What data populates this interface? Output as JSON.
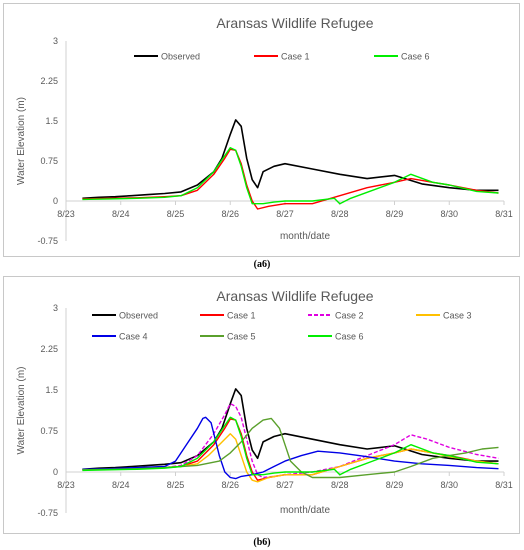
{
  "captions": [
    "(a6)",
    "(b6)"
  ],
  "colors": {
    "Observed": "#000000",
    "Case 1": "#ff0000",
    "Case 2": "#e000e0",
    "Case 3": "#ffc000",
    "Case 4": "#0000e6",
    "Case 5": "#5aa02c",
    "Case 6": "#00ee00"
  },
  "chart_data": [
    {
      "type": "line",
      "title": "Aransas Wildlife Refugee",
      "xlabel": "month/date",
      "ylabel": "Water Elevation (m)",
      "x_ticks": [
        "8/23",
        "8/24",
        "8/25",
        "8/26",
        "8/27",
        "8/28",
        "8/29",
        "8/30",
        "8/31"
      ],
      "y_ticks": [
        "-0.75",
        "0",
        "0.75",
        "1.5",
        "2.25",
        "3"
      ],
      "xlim": [
        0,
        8
      ],
      "ylim": [
        -0.75,
        3
      ],
      "grid": false,
      "legend_position": "top",
      "x_note": "x values in days after 8/23",
      "series": [
        {
          "name": "Observed",
          "x": [
            0.3,
            0.6,
            0.9,
            1.2,
            1.5,
            1.8,
            2.1,
            2.4,
            2.7,
            2.85,
            3.0,
            3.1,
            3.2,
            3.3,
            3.4,
            3.5,
            3.6,
            3.8,
            4.0,
            4.5,
            5.0,
            5.5,
            6.0,
            6.5,
            7.0,
            7.5,
            7.9
          ],
          "y": [
            0.05,
            0.07,
            0.08,
            0.1,
            0.12,
            0.14,
            0.17,
            0.3,
            0.55,
            0.8,
            1.25,
            1.52,
            1.4,
            0.8,
            0.4,
            0.25,
            0.55,
            0.65,
            0.7,
            0.6,
            0.5,
            0.42,
            0.48,
            0.32,
            0.25,
            0.2,
            0.2
          ]
        },
        {
          "name": "Case 1",
          "x": [
            0.3,
            0.8,
            1.3,
            1.8,
            2.1,
            2.4,
            2.7,
            2.9,
            3.0,
            3.1,
            3.2,
            3.3,
            3.4,
            3.5,
            3.7,
            4.0,
            4.5,
            5.0,
            5.5,
            6.0,
            6.3,
            6.7,
            7.0,
            7.5,
            7.9
          ],
          "y": [
            0.04,
            0.05,
            0.06,
            0.08,
            0.1,
            0.2,
            0.5,
            0.8,
            0.97,
            0.95,
            0.7,
            0.3,
            0.0,
            -0.15,
            -0.1,
            -0.05,
            -0.05,
            0.1,
            0.25,
            0.35,
            0.42,
            0.35,
            0.3,
            0.2,
            0.15
          ]
        },
        {
          "name": "Case 6",
          "x": [
            0.3,
            0.8,
            1.3,
            1.8,
            2.1,
            2.4,
            2.7,
            2.9,
            3.0,
            3.1,
            3.2,
            3.3,
            3.4,
            3.6,
            3.8,
            4.0,
            4.5,
            4.9,
            5.0,
            5.2,
            5.6,
            6.0,
            6.3,
            6.7,
            7.0,
            7.5,
            7.9
          ],
          "y": [
            0.03,
            0.04,
            0.05,
            0.07,
            0.1,
            0.25,
            0.55,
            0.85,
            1.0,
            0.95,
            0.65,
            0.25,
            -0.05,
            -0.05,
            -0.02,
            0.0,
            0.0,
            0.05,
            -0.05,
            0.05,
            0.2,
            0.35,
            0.5,
            0.35,
            0.3,
            0.18,
            0.15
          ]
        }
      ]
    },
    {
      "type": "line",
      "title": "Aransas Wildlife Refugee",
      "xlabel": "month/date",
      "ylabel": "Water Elevation (m)",
      "x_ticks": [
        "8/23",
        "8/24",
        "8/25",
        "8/26",
        "8/27",
        "8/28",
        "8/29",
        "8/30",
        "8/31"
      ],
      "y_ticks": [
        "-0.75",
        "0",
        "0.75",
        "1.5",
        "2.25",
        "3"
      ],
      "xlim": [
        0,
        8
      ],
      "ylim": [
        -0.75,
        3
      ],
      "grid": false,
      "legend_position": "top",
      "x_note": "x values in days after 8/23",
      "series": [
        {
          "name": "Observed",
          "x": [
            0.3,
            0.6,
            0.9,
            1.2,
            1.5,
            1.8,
            2.1,
            2.4,
            2.7,
            2.85,
            3.0,
            3.1,
            3.2,
            3.3,
            3.4,
            3.5,
            3.6,
            3.8,
            4.0,
            4.5,
            5.0,
            5.5,
            6.0,
            6.5,
            7.0,
            7.5,
            7.9
          ],
          "y": [
            0.05,
            0.07,
            0.08,
            0.1,
            0.12,
            0.14,
            0.17,
            0.3,
            0.55,
            0.8,
            1.25,
            1.52,
            1.4,
            0.8,
            0.4,
            0.25,
            0.55,
            0.65,
            0.7,
            0.6,
            0.5,
            0.42,
            0.48,
            0.32,
            0.25,
            0.2,
            0.2
          ]
        },
        {
          "name": "Case 1",
          "x": [
            0.3,
            0.8,
            1.3,
            1.8,
            2.1,
            2.4,
            2.7,
            2.9,
            3.0,
            3.1,
            3.2,
            3.3,
            3.4,
            3.5,
            3.7,
            4.0,
            4.5,
            5.0,
            5.5,
            6.0,
            6.3,
            6.7,
            7.0,
            7.5,
            7.9
          ],
          "y": [
            0.04,
            0.05,
            0.06,
            0.08,
            0.1,
            0.2,
            0.5,
            0.8,
            0.97,
            0.95,
            0.7,
            0.3,
            0.0,
            -0.15,
            -0.1,
            -0.05,
            -0.05,
            0.1,
            0.25,
            0.35,
            0.42,
            0.35,
            0.3,
            0.2,
            0.15
          ]
        },
        {
          "name": "Case 2",
          "x": [
            0.3,
            0.8,
            1.3,
            1.8,
            2.1,
            2.4,
            2.7,
            2.9,
            3.0,
            3.1,
            3.2,
            3.3,
            3.4,
            3.5,
            3.6,
            3.8,
            4.0,
            4.5,
            5.0,
            5.5,
            6.0,
            6.3,
            6.6,
            7.0,
            7.5,
            7.9
          ],
          "y": [
            0.04,
            0.05,
            0.06,
            0.08,
            0.12,
            0.3,
            0.7,
            1.05,
            1.25,
            1.2,
            1.0,
            0.6,
            0.2,
            -0.05,
            -0.1,
            -0.08,
            -0.05,
            0.0,
            0.1,
            0.3,
            0.5,
            0.68,
            0.6,
            0.45,
            0.32,
            0.25
          ]
        },
        {
          "name": "Case 3",
          "x": [
            0.3,
            0.8,
            1.3,
            1.8,
            2.1,
            2.4,
            2.6,
            2.8,
            3.0,
            3.1,
            3.2,
            3.3,
            3.4,
            3.5,
            3.7,
            4.0,
            4.5,
            5.0,
            5.5,
            6.0,
            6.3,
            6.7,
            7.0,
            7.5,
            7.9
          ],
          "y": [
            0.04,
            0.05,
            0.06,
            0.08,
            0.1,
            0.15,
            0.3,
            0.5,
            0.7,
            0.6,
            0.3,
            0.0,
            -0.15,
            -0.18,
            -0.1,
            -0.05,
            -0.05,
            0.1,
            0.25,
            0.35,
            0.42,
            0.35,
            0.28,
            0.2,
            0.15
          ]
        },
        {
          "name": "Case 4",
          "x": [
            0.3,
            0.8,
            1.3,
            1.8,
            2.0,
            2.2,
            2.4,
            2.5,
            2.55,
            2.65,
            2.8,
            2.9,
            3.0,
            3.1,
            3.2,
            3.4,
            3.6,
            3.8,
            4.0,
            4.3,
            4.6,
            5.0,
            5.5,
            6.0,
            6.5,
            7.0,
            7.5,
            7.9
          ],
          "y": [
            0.05,
            0.06,
            0.08,
            0.1,
            0.2,
            0.5,
            0.8,
            0.98,
            1.0,
            0.9,
            0.3,
            0.0,
            -0.1,
            -0.12,
            -0.08,
            -0.05,
            0.0,
            0.1,
            0.2,
            0.3,
            0.38,
            0.35,
            0.28,
            0.2,
            0.15,
            0.12,
            0.08,
            0.06
          ]
        },
        {
          "name": "Case 5",
          "x": [
            0.3,
            0.8,
            1.3,
            1.8,
            2.1,
            2.4,
            2.8,
            3.0,
            3.2,
            3.4,
            3.6,
            3.75,
            3.9,
            4.0,
            4.1,
            4.3,
            4.5,
            5.0,
            5.5,
            6.0,
            6.3,
            6.7,
            7.0,
            7.3,
            7.6,
            7.9
          ],
          "y": [
            0.04,
            0.05,
            0.06,
            0.08,
            0.1,
            0.12,
            0.2,
            0.35,
            0.55,
            0.8,
            0.95,
            0.98,
            0.8,
            0.5,
            0.2,
            0.0,
            -0.1,
            -0.1,
            -0.05,
            0.0,
            0.1,
            0.25,
            0.3,
            0.35,
            0.42,
            0.45
          ]
        },
        {
          "name": "Case 6",
          "x": [
            0.3,
            0.8,
            1.3,
            1.8,
            2.1,
            2.4,
            2.7,
            2.9,
            3.0,
            3.1,
            3.2,
            3.3,
            3.4,
            3.6,
            3.8,
            4.0,
            4.5,
            4.9,
            5.0,
            5.2,
            5.6,
            6.0,
            6.3,
            6.7,
            7.0,
            7.5,
            7.9
          ],
          "y": [
            0.03,
            0.04,
            0.05,
            0.07,
            0.1,
            0.25,
            0.55,
            0.85,
            1.0,
            0.95,
            0.65,
            0.25,
            -0.05,
            -0.05,
            -0.02,
            0.0,
            0.0,
            0.05,
            -0.05,
            0.05,
            0.2,
            0.35,
            0.5,
            0.35,
            0.3,
            0.18,
            0.15
          ]
        }
      ]
    }
  ]
}
